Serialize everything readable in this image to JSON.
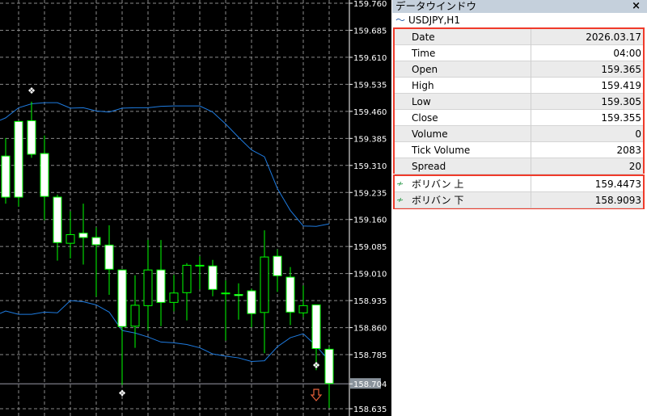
{
  "chart": {
    "symbol": "USDJPY",
    "timeframe": "H1",
    "price_axis": [
      "159.760",
      "159.685",
      "159.610",
      "159.535",
      "159.460",
      "159.385",
      "159.310",
      "159.235",
      "159.160",
      "159.085",
      "159.010",
      "158.935",
      "158.860",
      "158.785",
      "158.704",
      "158.635"
    ],
    "current_price": "158.704",
    "colors": {
      "background": "#000000",
      "candle_border": "#00ff00",
      "bull_fill": "#000000",
      "bear_fill": "#ffffff",
      "band": "#1e7be0",
      "grid": "#8a8a8a"
    },
    "candles": [
      {
        "o": 159.336,
        "h": 159.386,
        "l": 159.204,
        "c": 159.222
      },
      {
        "o": 159.432,
        "h": 159.434,
        "l": 159.196,
        "c": 159.222
      },
      {
        "o": 159.434,
        "h": 159.487,
        "l": 159.331,
        "c": 159.341
      },
      {
        "o": 159.343,
        "h": 159.393,
        "l": 159.158,
        "c": 159.224
      },
      {
        "o": 159.222,
        "h": 159.229,
        "l": 159.046,
        "c": 159.096
      },
      {
        "o": 159.094,
        "h": 159.183,
        "l": 159.052,
        "c": 159.118
      },
      {
        "o": 159.122,
        "h": 159.204,
        "l": 159.035,
        "c": 159.11
      },
      {
        "o": 159.11,
        "h": 159.138,
        "l": 158.946,
        "c": 159.09
      },
      {
        "o": 159.089,
        "h": 159.144,
        "l": 158.951,
        "c": 159.022
      },
      {
        "o": 159.02,
        "h": 159.02,
        "l": 158.701,
        "c": 158.863
      },
      {
        "o": 158.864,
        "h": 159.005,
        "l": 158.804,
        "c": 158.922
      },
      {
        "o": 158.921,
        "h": 159.103,
        "l": 158.852,
        "c": 159.02
      },
      {
        "o": 159.02,
        "h": 159.103,
        "l": 158.864,
        "c": 158.93
      },
      {
        "o": 158.93,
        "h": 159.006,
        "l": 158.905,
        "c": 158.956
      },
      {
        "o": 158.957,
        "h": 159.039,
        "l": 158.88,
        "c": 159.033
      },
      {
        "o": 159.033,
        "h": 159.058,
        "l": 158.966,
        "c": 159.031
      },
      {
        "o": 159.031,
        "h": 159.048,
        "l": 158.947,
        "c": 158.966
      },
      {
        "o": 158.956,
        "h": 158.991,
        "l": 158.824,
        "c": 158.956
      },
      {
        "o": 158.952,
        "h": 158.983,
        "l": 158.882,
        "c": 158.949
      },
      {
        "o": 158.962,
        "h": 158.968,
        "l": 158.861,
        "c": 158.899
      },
      {
        "o": 158.902,
        "h": 159.13,
        "l": 158.789,
        "c": 159.056
      },
      {
        "o": 159.058,
        "h": 159.077,
        "l": 158.959,
        "c": 159.004
      },
      {
        "o": 159.0,
        "h": 159.028,
        "l": 158.867,
        "c": 158.903
      },
      {
        "o": 158.901,
        "h": 158.977,
        "l": 158.889,
        "c": 158.921
      },
      {
        "o": 158.923,
        "h": 158.923,
        "l": 158.742,
        "c": 158.802
      },
      {
        "o": 158.8,
        "h": 158.807,
        "l": 158.637,
        "c": 158.705
      }
    ],
    "band_upper": [
      159.442,
      159.47,
      159.481,
      159.484,
      159.484,
      159.469,
      159.47,
      159.461,
      159.458,
      159.469,
      159.47,
      159.47,
      159.474,
      159.475,
      159.475,
      159.475,
      159.458,
      159.425,
      159.388,
      159.353,
      159.334,
      159.246,
      159.185,
      159.142,
      159.141,
      159.148
    ],
    "band_lower": [
      158.906,
      158.897,
      158.897,
      158.903,
      158.901,
      158.935,
      158.932,
      158.923,
      158.903,
      158.852,
      158.845,
      158.834,
      158.82,
      158.818,
      158.813,
      158.804,
      158.787,
      158.781,
      158.776,
      158.766,
      158.768,
      158.807,
      158.832,
      158.843,
      158.809,
      158.768
    ],
    "fractals": [
      {
        "index": 2,
        "type": "up"
      },
      {
        "index": 9,
        "type": "down"
      },
      {
        "index": 24,
        "type": "down"
      }
    ],
    "signal_arrow": {
      "index": 24,
      "type": "sell",
      "icon": "down-arrow-icon",
      "color": "#e8603a"
    }
  },
  "data_window": {
    "title": "データウインドウ",
    "close_label": "×",
    "symbol_row": "USDJPY,H1",
    "rows": [
      {
        "label": "Date",
        "value": "2026.03.17"
      },
      {
        "label": "Time",
        "value": "04:00"
      },
      {
        "label": "Open",
        "value": "159.365"
      },
      {
        "label": "High",
        "value": "159.419"
      },
      {
        "label": "Low",
        "value": "159.305"
      },
      {
        "label": "Close",
        "value": "159.355"
      },
      {
        "label": "Volume",
        "value": "0"
      },
      {
        "label": "Tick Volume",
        "value": "2083"
      },
      {
        "label": "Spread",
        "value": "20"
      }
    ],
    "indicators": [
      {
        "label": "ボリバン 上",
        "value": "159.4473"
      },
      {
        "label": "ボリバン 下",
        "value": "158.9093"
      }
    ]
  }
}
